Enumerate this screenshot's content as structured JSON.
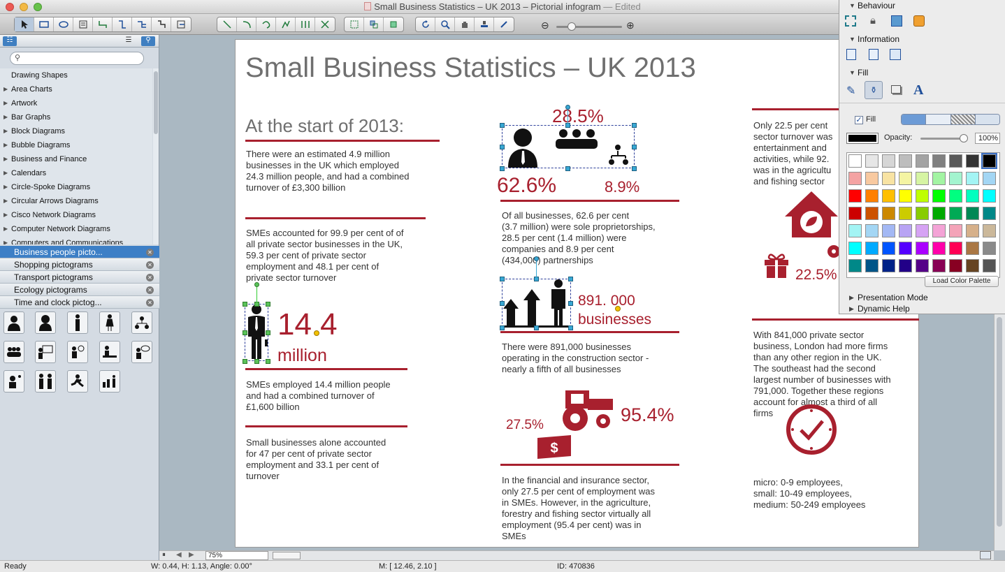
{
  "window": {
    "title": "Small Business Statistics – UK 2013 – Pictorial infogram",
    "edited": "— Edited"
  },
  "search": {
    "placeholder": ""
  },
  "library_categories": [
    "Drawing Shapes",
    "Area Charts",
    "Artwork",
    "Bar Graphs",
    "Block Diagrams",
    "Bubble Diagrams",
    "Business and Finance",
    "Calendars",
    "Circle-Spoke Diagrams",
    "Circular Arrows Diagrams",
    "Cisco Network Diagrams",
    "Computer Network Diagrams",
    "Computers and Communications"
  ],
  "open_libraries": [
    "Business people picto...",
    "Shopping pictograms",
    "Transport pictograms",
    "Ecology pictograms",
    "Time and clock pictog..."
  ],
  "page": {
    "title": "Small Business Statistics – UK 2013",
    "start_heading": "At the start of 2013:",
    "p1": [
      "There were an estimated 4.9 million",
      "businesses in the UK which employed",
      "24.3 million people, and had a combined",
      "turnover of £3,300 billion"
    ],
    "p2": [
      "SMEs accounted for 99.9 per cent of of",
      "all private sector businesses in the UK,",
      "59.3 per cent of private sector",
      "employment and 48.1 per cent of",
      "private sector turnover"
    ],
    "big_14": "14.4",
    "big_million": "million",
    "p3": [
      "SMEs employed 14.4 million people",
      "and had a combined turnover of",
      "£1,600 billion"
    ],
    "p4": [
      "Small businesses alone accounted",
      "for 47 per cent of private sector",
      "employment and 33.1 per cent of",
      "turnover"
    ],
    "pct_285": "28.5%",
    "pct_626": "62.6%",
    "pct_89": "8.9%",
    "p5": [
      "Of all businesses, 62.6 per cent",
      "(3.7 million) were sole proprietorships,",
      "28.5 per cent (1.4 million) were",
      "companies and 8.9 per cent",
      "(434,000) partnerships"
    ],
    "big_891": "891. 000",
    "big_businesses": "businesses",
    "p6": [
      "There were 891,000 businesses",
      "operating in the construction sector -",
      "nearly a fifth of all businesses"
    ],
    "pct_275": "27.5%",
    "pct_954": "95.4%",
    "p7": [
      "In the financial and insurance sector,",
      "only 27.5 per cent of employment was",
      "in SMEs. However, in the agriculture,",
      "forestry and fishing sector virtually all",
      "employment (95.4 per cent) was in",
      "SMEs"
    ],
    "p8": [
      "Only 22.5 per cent",
      "sector turnover was",
      "entertainment and",
      "activities, while 92.",
      "was in the agricultu",
      "and fishing sector"
    ],
    "pct_225": "22.5%",
    "p9": [
      "With 841,000 private sector",
      "business, London had more firms",
      "than any other region in the UK.",
      "The southeast had the second",
      "largest number of businesses with",
      "791,000. Together these regions",
      "account for almost a third of all",
      "firms"
    ],
    "p10": [
      "micro: 0-9 employees,",
      "small: 10-49 employees,",
      "medium: 50-249 employees"
    ]
  },
  "right_panel": {
    "behaviour": "Behaviour",
    "information": "Information",
    "fill": "Fill",
    "fill_checkbox": "Fill",
    "opacity_label": "Opacity:",
    "opacity_value": "100%",
    "load_palette": "Load Color Palette",
    "presentation_mode": "Presentation Mode",
    "dynamic_help": "Dynamic Help"
  },
  "zoom": {
    "value": "75%"
  },
  "status": {
    "ready": "Ready",
    "size": "W: 0.44,  H: 1.13,  Angle: 0.00°",
    "mouse": "M: [ 12.46, 2.10 ]",
    "id": "ID: 470836"
  },
  "colors": {
    "accent": "#a8202e",
    "selection": "#3d7fc6"
  }
}
